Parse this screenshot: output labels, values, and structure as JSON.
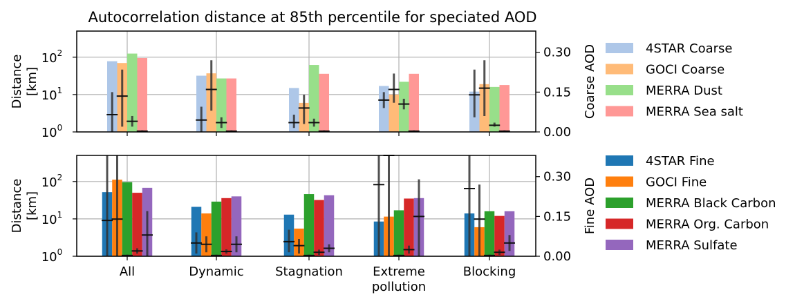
{
  "chart_data": {
    "type": "bar",
    "title": "Autocorrelation distance at 85th percentile for speciated AOD",
    "categories": [
      "All",
      "Dynamic",
      "Stagnation",
      "Extreme\npollution",
      "Blocking"
    ],
    "yscale_left": "log",
    "ylim_left": [
      1,
      500
    ],
    "yticks_left": [
      "10^0",
      "10^1",
      "10^2"
    ],
    "yticks_right": [
      "0.00",
      "0.15",
      "0.30"
    ],
    "ylim_right": [
      0,
      0.38
    ],
    "grid": true,
    "legend_placement": "right",
    "panels": [
      {
        "id": "coarse",
        "ylabel": "Distance\n[km]",
        "ylabel_right": "Coarse AOD",
        "series": [
          {
            "name": "4STAR Coarse",
            "color": "#aec7e8",
            "values": [
              78,
              32,
              15,
              17,
              12
            ],
            "aod_mean": [
              0.065,
              0.045,
              0.035,
              0.12,
              0.14
            ],
            "aod_low": [
              0.0,
              0.0,
              0.015,
              0.09,
              0.055
            ],
            "aod_high": [
              0.15,
              0.095,
              0.065,
              0.15,
              0.235
            ]
          },
          {
            "name": "GOCI Coarse",
            "color": "#ffbb78",
            "values": [
              70,
              37,
              6,
              10,
              19
            ],
            "aod_mean": [
              0.135,
              0.16,
              0.09,
              0.16,
              0.165
            ],
            "aod_low": [
              0.02,
              0.08,
              0.03,
              0.11,
              0.06
            ],
            "aod_high": [
              0.235,
              0.27,
              0.14,
              0.22,
              0.27
            ]
          },
          {
            "name": "MERRA Dust",
            "color": "#98df8a",
            "values": [
              125,
              27,
              62,
              22,
              16
            ],
            "aod_mean": [
              0.04,
              0.035,
              0.035,
              0.105,
              0.025
            ],
            "aod_low": [
              0.02,
              0.015,
              0.02,
              0.085,
              0.02
            ],
            "aod_high": [
              0.06,
              0.055,
              0.05,
              0.125,
              0.035
            ]
          },
          {
            "name": "MERRA Sea salt",
            "color": "#ff9896",
            "values": [
              95,
              27,
              36,
              36,
              18
            ],
            "aod_mean": [
              0.003,
              0.003,
              0.003,
              0.003,
              0.003
            ],
            "aod_low": [
              0.0,
              0.0,
              0.0,
              0.0,
              0.0
            ],
            "aod_high": [
              0.006,
              0.006,
              0.006,
              0.006,
              0.006
            ]
          }
        ]
      },
      {
        "id": "fine",
        "ylabel": "Distance\n[km]",
        "ylabel_right": "Fine AOD",
        "series": [
          {
            "name": "4STAR Fine",
            "color": "#1f77b4",
            "values": [
              52,
              21,
              13,
              8.5,
              14
            ],
            "aod_mean": [
              0.135,
              0.05,
              0.055,
              0.27,
              0.255
            ],
            "aod_low": [
              0.0,
              0.01,
              0.015,
              0.0,
              0.0
            ],
            "aod_high": [
              0.38,
              0.09,
              0.1,
              0.38,
              0.38
            ]
          },
          {
            "name": "GOCI Fine",
            "color": "#ff7f0e",
            "values": [
              112,
              14,
              5.5,
              11.5,
              6
            ],
            "aod_mean": [
              0.14,
              0.045,
              0.04,
              0.38,
              0.14
            ],
            "aod_low": [
              0.0,
              0.015,
              0.01,
              0.0,
              0.0
            ],
            "aod_high": [
              0.38,
              0.075,
              0.065,
              0.38,
              0.27
            ]
          },
          {
            "name": "MERRA Black Carbon",
            "color": "#2ca02c",
            "values": [
              96,
              29,
              46,
              17,
              16
            ],
            "aod_mean": [
              0.003,
              0.003,
              0.003,
              0.003,
              0.003
            ],
            "aod_low": [
              0.0,
              0.0,
              0.0,
              0.0,
              0.0
            ],
            "aod_high": [
              0.006,
              0.006,
              0.006,
              0.006,
              0.006
            ]
          },
          {
            "name": "MERRA Org. Carbon",
            "color": "#d62728",
            "values": [
              50,
              36,
              32,
              35,
              12
            ],
            "aod_mean": [
              0.02,
              0.018,
              0.015,
              0.025,
              0.015
            ],
            "aod_low": [
              0.01,
              0.01,
              0.005,
              0.01,
              0.005
            ],
            "aod_high": [
              0.03,
              0.026,
              0.025,
              0.04,
              0.025
            ]
          },
          {
            "name": "MERRA Sulfate",
            "color": "#9467bd",
            "values": [
              68,
              40,
              43,
              36,
              16
            ],
            "aod_mean": [
              0.08,
              0.045,
              0.03,
              0.15,
              0.05
            ],
            "aod_low": [
              0.0,
              0.015,
              0.015,
              0.0,
              0.02
            ],
            "aod_high": [
              0.17,
              0.075,
              0.045,
              0.29,
              0.08
            ]
          }
        ]
      }
    ]
  }
}
